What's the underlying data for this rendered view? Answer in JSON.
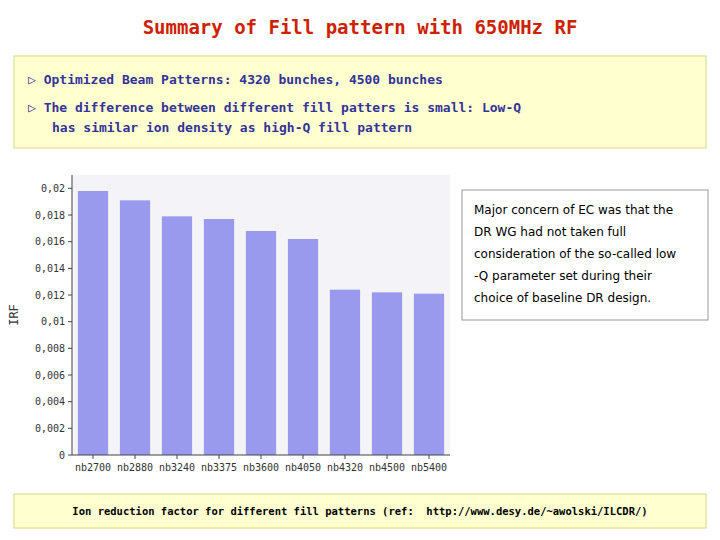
{
  "chart_data": {
    "type": "bar",
    "title": "Summary of Fill pattern with 650MHz RF",
    "categories": [
      "nb2700",
      "nb2880",
      "nb3240",
      "nb3375",
      "nb3600",
      "nb4050",
      "nb4320",
      "nb4500",
      "nb5400"
    ],
    "values": [
      0.0198,
      0.0191,
      0.0179,
      0.0177,
      0.0168,
      0.0162,
      0.0124,
      0.0122,
      0.0121
    ],
    "color": "#9999EE",
    "ylabel": "IRF",
    "ylim": [
      0,
      0.021
    ],
    "yticks": [
      0,
      {
        "value": 0.002,
        "label": "0,002"
      },
      {
        "value": 0.004,
        "label": "0,004"
      },
      {
        "value": 0.006,
        "label": "0,006"
      },
      {
        "value": 0.008,
        "label": "0,008"
      },
      {
        "value": 0.01,
        "label": "0,01"
      },
      {
        "value": 0.012,
        "label": "0,012"
      },
      {
        "value": 0.014,
        "label": "0,014"
      },
      {
        "value": 0.016,
        "label": "0,016"
      },
      {
        "value": 0.018,
        "label": "0,018"
      },
      {
        "value": 0.02,
        "label": "0,02"
      }
    ],
    "grid": false,
    "annotations": [
      "▷ Optimized Beam Patterns: 4320 bunches, 4500 bunches",
      "▷ The difference between different fill patters is small: Low-Q",
      "has similar ion density as high-Q fill pattern",
      "Major concern of EC was that the\nDR WG had not taken full\nconsideration of the so-called low\n-Q parameter set during their\nchoice of baseline DR design.",
      "Ion reduction factor for different fill patterns (ref:  http://www.desy.de/~awolski/ILCDR/)"
    ]
  }
}
